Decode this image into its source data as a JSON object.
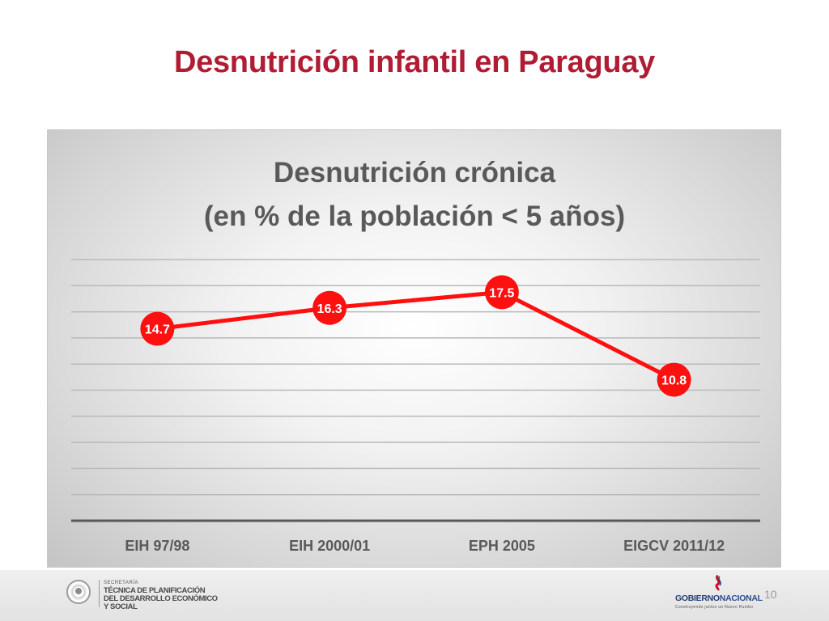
{
  "slide": {
    "title": "Desnutrición infantil en Paraguay",
    "page_number": "10"
  },
  "chart_data": {
    "type": "line",
    "title_line1": "Desnutrición crónica",
    "title_line2": "(en % de la población < 5 años)",
    "categories": [
      "EIH 97/98",
      "EIH 2000/01",
      "EPH 2005",
      "EIGCV 2011/12"
    ],
    "series": [
      {
        "values": [
          14.7,
          16.3,
          17.5,
          10.8
        ],
        "color": "#ff1010"
      }
    ],
    "data_labels": [
      "14.7",
      "16.3",
      "17.5",
      "10.8"
    ],
    "ylim": [
      0,
      20
    ],
    "y_gridline_step": 2,
    "grid": true,
    "legend": "none",
    "colors": {
      "line": "#ff1010",
      "gridline": "#b9b9b9",
      "axis": "#595959",
      "title_text": "#595959",
      "label_text": "#ffffff"
    }
  },
  "footer": {
    "secretaria_small": "SECRETARÍA",
    "secretaria_line1": "TÉCNICA DE PLANIFICACIÓN",
    "secretaria_line2": "DEL DESARROLLO ECONÓMICO",
    "secretaria_line3": "Y SOCIAL",
    "gov_word1": "GOBIERNO",
    "gov_word2": "NACIONAL",
    "gov_tagline": "Construyendo juntos un Nuevo Rumbo"
  }
}
